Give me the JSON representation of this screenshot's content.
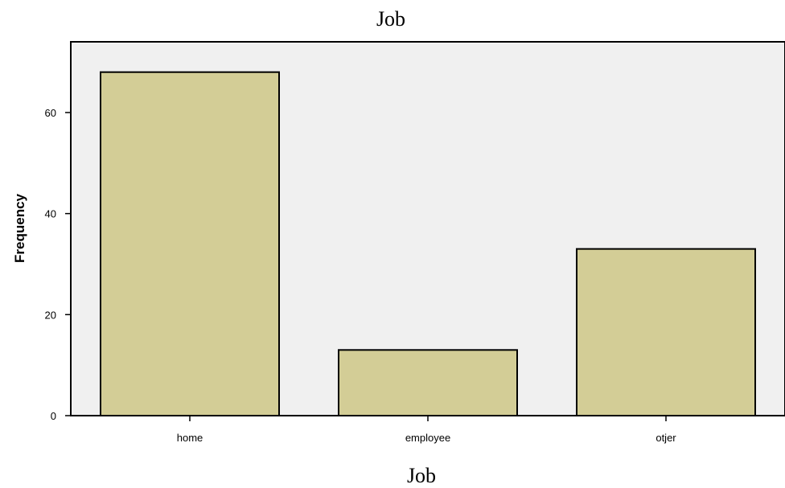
{
  "chart_data": {
    "type": "bar",
    "title": "Job",
    "xlabel": "Job",
    "ylabel": "Frequency",
    "categories": [
      "home",
      "employee",
      "otjer"
    ],
    "values": [
      68,
      13,
      33
    ],
    "ylim": [
      0,
      74
    ],
    "yticks": [
      0,
      20,
      40,
      60
    ],
    "grid": false,
    "legend": "none",
    "colors": {
      "bar_fill": "#d3cd96",
      "plot_background": "#f0f0f0",
      "outline": "#000000"
    }
  }
}
